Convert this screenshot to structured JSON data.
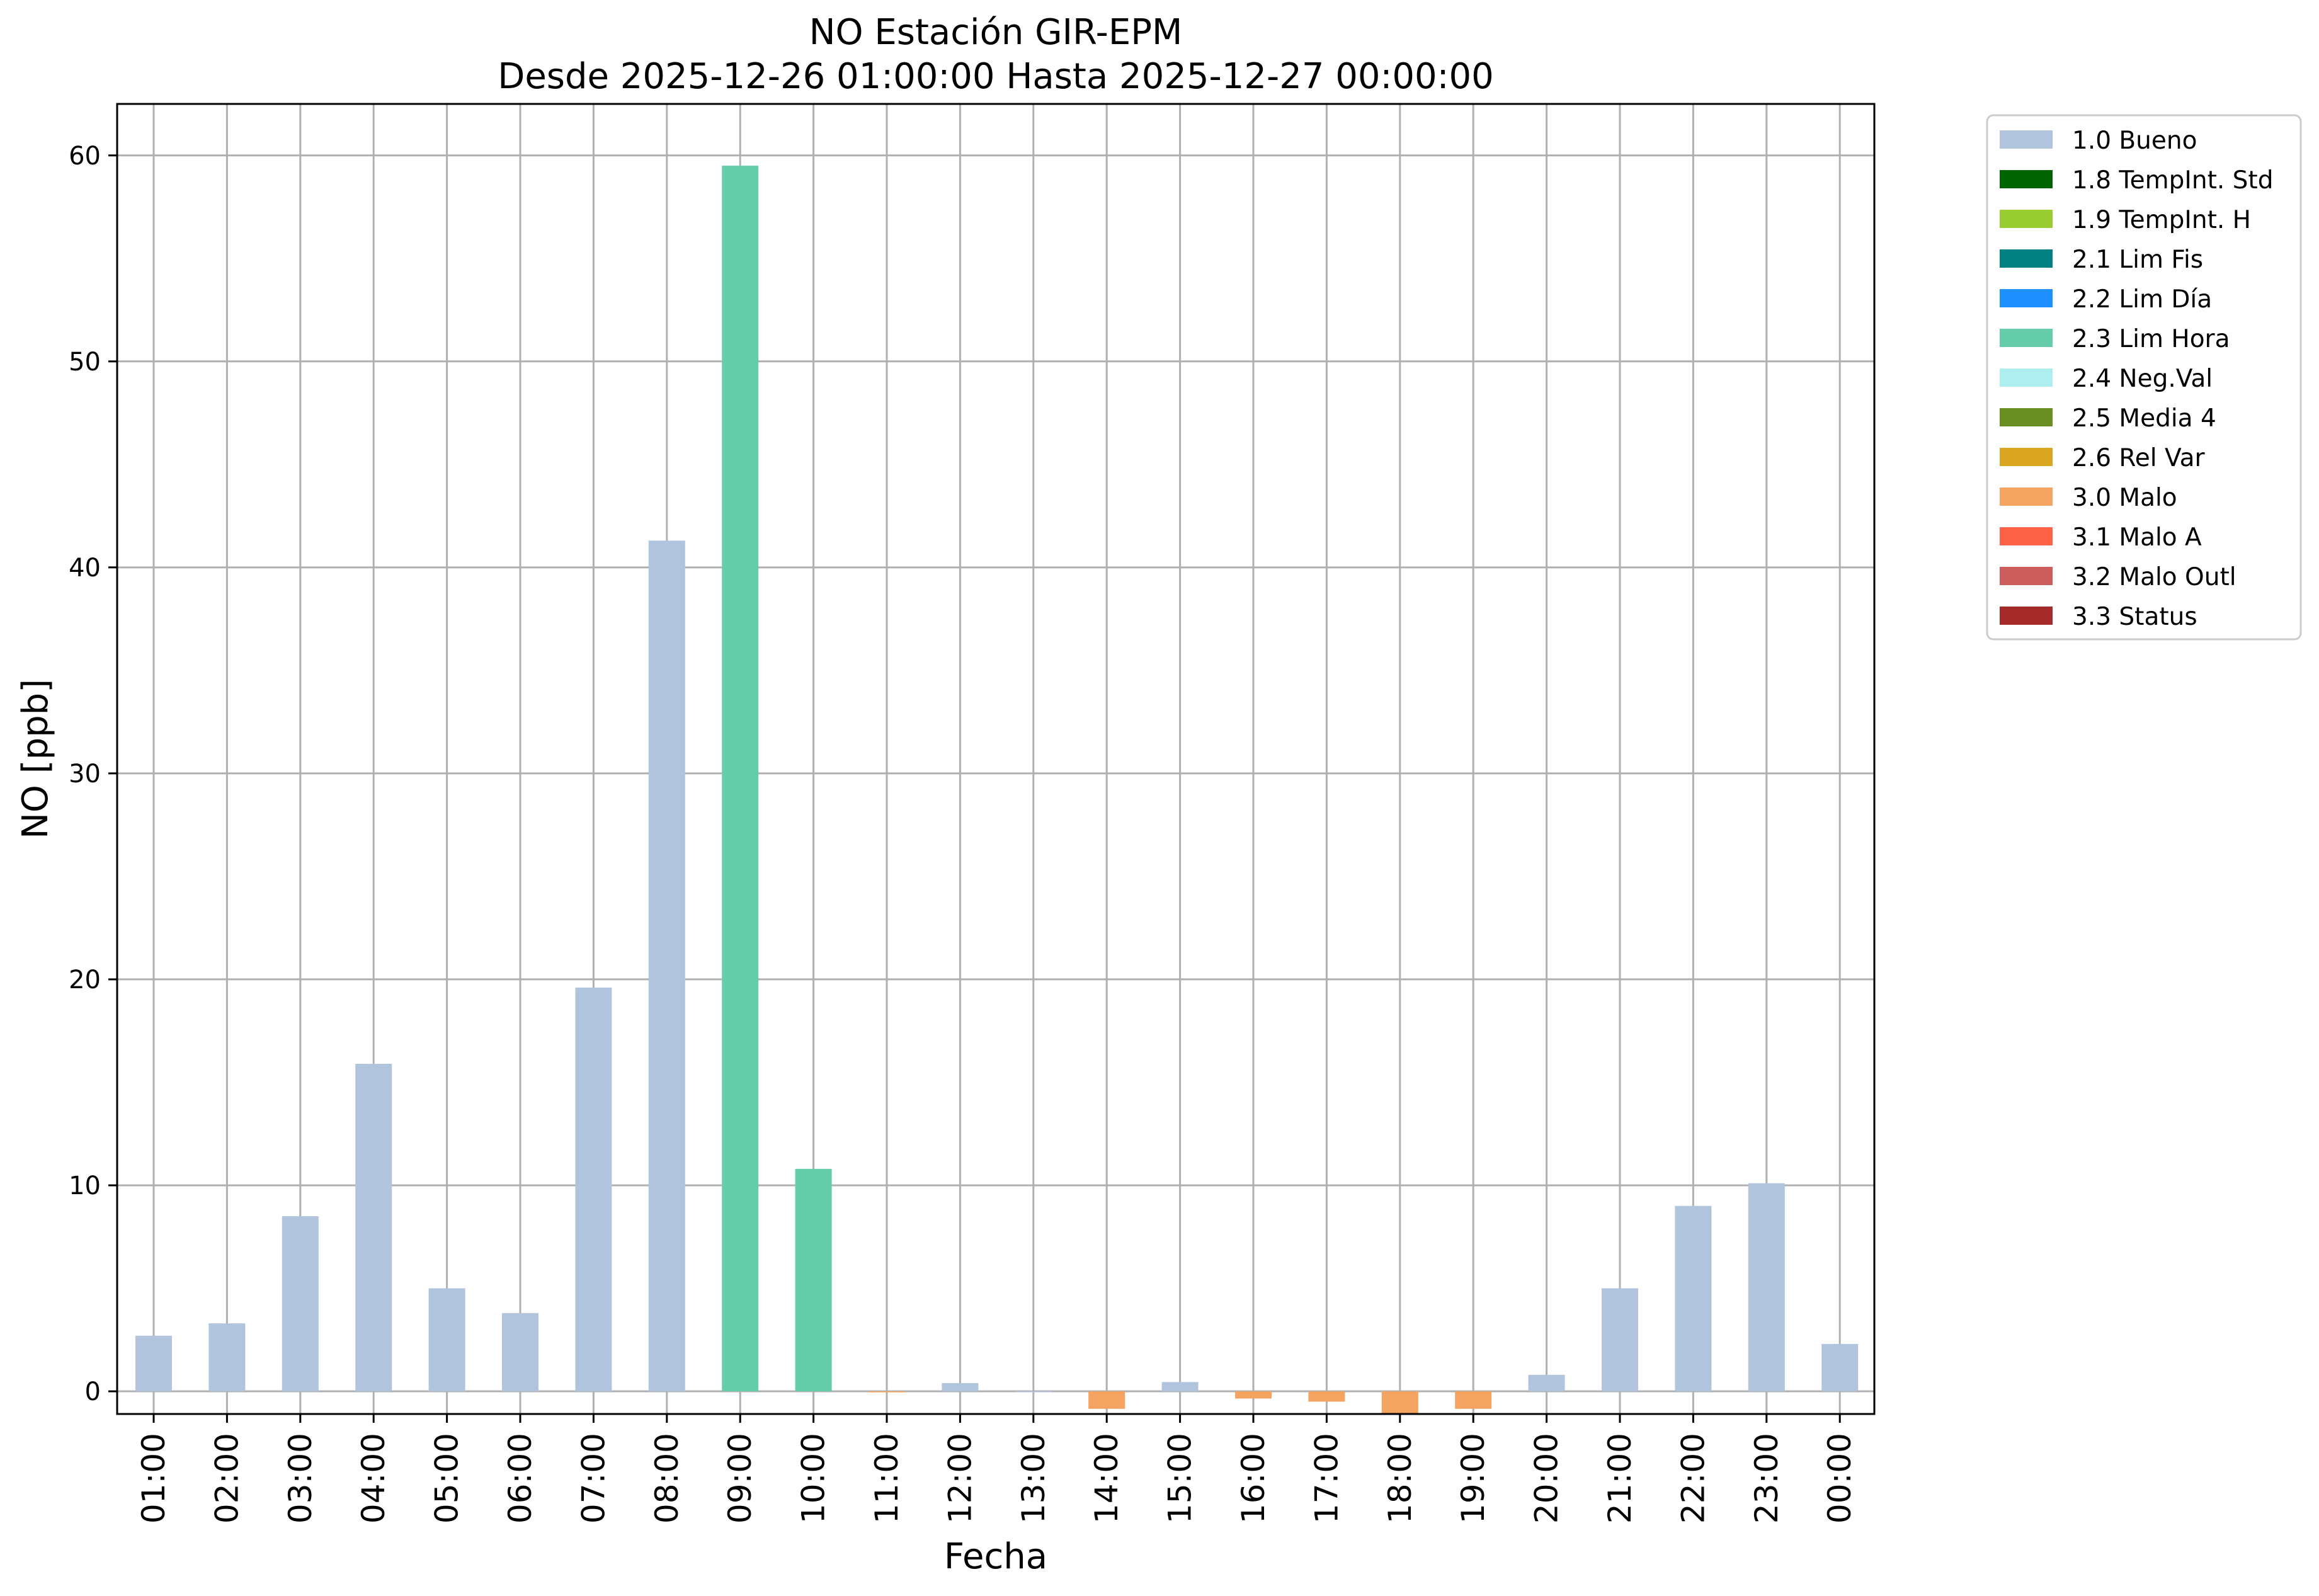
{
  "chart_data": {
    "type": "bar",
    "title": "NO Estación GIR-EPM",
    "subtitle": "Desde 2025-12-26 01:00:00 Hasta 2025-12-27 00:00:00",
    "xlabel": "Fecha",
    "ylabel": "NO [ppb]",
    "ylim": [
      -1.1,
      62.5
    ],
    "yticks": [
      0,
      10,
      20,
      30,
      40,
      50,
      60
    ],
    "grid": true,
    "legend_position": "outside top-right",
    "categories": [
      "01:00",
      "02:00",
      "03:00",
      "04:00",
      "05:00",
      "06:00",
      "07:00",
      "08:00",
      "09:00",
      "10:00",
      "11:00",
      "12:00",
      "13:00",
      "14:00",
      "15:00",
      "16:00",
      "17:00",
      "18:00",
      "19:00",
      "20:00",
      "21:00",
      "22:00",
      "23:00",
      "00:00"
    ],
    "values": [
      2.7,
      3.3,
      8.5,
      15.9,
      5.0,
      3.8,
      19.6,
      41.3,
      59.5,
      10.8,
      -0.05,
      0.4,
      0.0,
      -0.85,
      0.45,
      -0.35,
      -0.5,
      -1.1,
      -0.85,
      0.8,
      5.0,
      9.0,
      10.1,
      2.3
    ],
    "flags": [
      "1.0 Bueno",
      "1.0 Bueno",
      "1.0 Bueno",
      "1.0 Bueno",
      "1.0 Bueno",
      "1.0 Bueno",
      "1.0 Bueno",
      "1.0 Bueno",
      "2.3 Lim Hora",
      "2.3 Lim Hora",
      "3.0 Malo",
      "1.0 Bueno",
      "1.0 Bueno",
      "3.0 Malo",
      "1.0 Bueno",
      "3.0 Malo",
      "3.0 Malo",
      "3.0 Malo",
      "3.0 Malo",
      "1.0 Bueno",
      "1.0 Bueno",
      "1.0 Bueno",
      "1.0 Bueno",
      "1.0 Bueno"
    ],
    "legend": [
      {
        "label": "1.0 Bueno",
        "color": "#b0c4de"
      },
      {
        "label": "1.8 TempInt. Std",
        "color": "#006400"
      },
      {
        "label": "1.9 TempInt. H",
        "color": "#9acd32"
      },
      {
        "label": "2.1 Lim Fis",
        "color": "#008080"
      },
      {
        "label": "2.2 Lim Día",
        "color": "#1e90ff"
      },
      {
        "label": "2.3 Lim Hora",
        "color": "#66cdaa"
      },
      {
        "label": "2.4 Neg.Val",
        "color": "#afeeee"
      },
      {
        "label": "2.5 Media 4",
        "color": "#6b8e23"
      },
      {
        "label": "2.6 Rel Var",
        "color": "#daa520"
      },
      {
        "label": "3.0 Malo",
        "color": "#f4a460"
      },
      {
        "label": "3.1 Malo A",
        "color": "#ff6347"
      },
      {
        "label": "3.2 Malo Outl",
        "color": "#cd5c5c"
      },
      {
        "label": "3.3 Status",
        "color": "#a52a2a"
      }
    ]
  }
}
